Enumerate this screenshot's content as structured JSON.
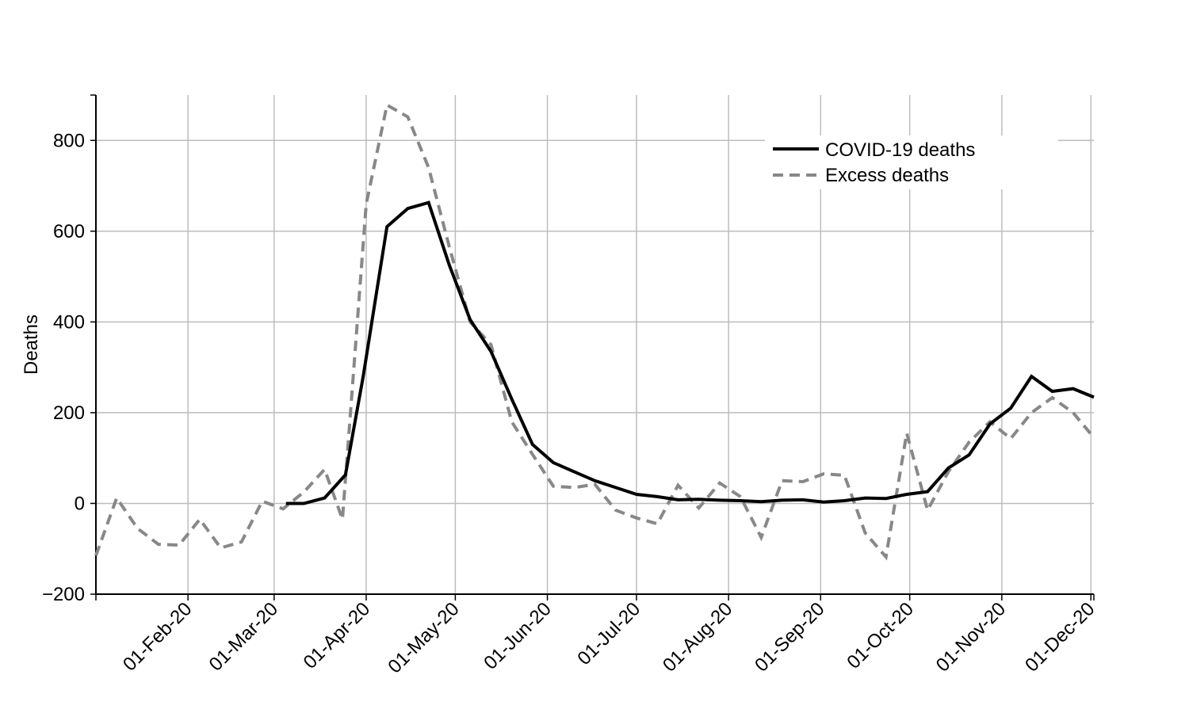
{
  "chart_data": {
    "type": "line",
    "title": "",
    "xlabel": "",
    "ylabel": "Deaths",
    "ylim": [
      -200,
      900
    ],
    "xlim": [
      "2020-01-01",
      "2020-12-02"
    ],
    "yticks": [
      -200,
      0,
      200,
      400,
      600,
      800
    ],
    "ytick_labels": [
      "−200",
      "0",
      "200",
      "400",
      "600",
      "800"
    ],
    "xticks": [
      "2020-02-01",
      "2020-03-01",
      "2020-04-01",
      "2020-05-01",
      "2020-06-01",
      "2020-07-01",
      "2020-08-01",
      "2020-09-01",
      "2020-10-01",
      "2020-11-01",
      "2020-12-01"
    ],
    "xtick_labels": [
      "01-Feb-20",
      "01-Mar-20",
      "01-Apr-20",
      "01-May-20",
      "01-Jun-20",
      "01-Jul-20",
      "01-Aug-20",
      "01-Sep-20",
      "01-Oct-20",
      "01-Nov-20",
      "01-Dec-20"
    ],
    "grid": true,
    "legend_position": "top-right",
    "series": [
      {
        "name": "COVID-19 deaths",
        "style": "solid",
        "color": "#000000",
        "points": [
          [
            "2020-03-05",
            0
          ],
          [
            "2020-03-11",
            0
          ],
          [
            "2020-03-18",
            12
          ],
          [
            "2020-03-25",
            63
          ],
          [
            "2020-03-31",
            280
          ],
          [
            "2020-04-08",
            610
          ],
          [
            "2020-04-15",
            650
          ],
          [
            "2020-04-22",
            663
          ],
          [
            "2020-04-29",
            525
          ],
          [
            "2020-05-06",
            405
          ],
          [
            "2020-05-13",
            335
          ],
          [
            "2020-05-20",
            230
          ],
          [
            "2020-05-27",
            130
          ],
          [
            "2020-06-03",
            90
          ],
          [
            "2020-06-10",
            70
          ],
          [
            "2020-06-17",
            50
          ],
          [
            "2020-06-24",
            35
          ],
          [
            "2020-07-01",
            20
          ],
          [
            "2020-07-08",
            15
          ],
          [
            "2020-07-15",
            8
          ],
          [
            "2020-07-22",
            9
          ],
          [
            "2020-07-29",
            7
          ],
          [
            "2020-08-05",
            6
          ],
          [
            "2020-08-12",
            4
          ],
          [
            "2020-08-19",
            7
          ],
          [
            "2020-08-26",
            8
          ],
          [
            "2020-09-02",
            3
          ],
          [
            "2020-09-09",
            6
          ],
          [
            "2020-09-16",
            12
          ],
          [
            "2020-09-23",
            11
          ],
          [
            "2020-09-30",
            20
          ],
          [
            "2020-10-07",
            26
          ],
          [
            "2020-10-14",
            78
          ],
          [
            "2020-10-21",
            107
          ],
          [
            "2020-10-28",
            175
          ],
          [
            "2020-11-04",
            210
          ],
          [
            "2020-11-11",
            280
          ],
          [
            "2020-11-18",
            247
          ],
          [
            "2020-11-25",
            253
          ],
          [
            "2020-12-02",
            234
          ]
        ]
      },
      {
        "name": "Excess deaths",
        "style": "dashed",
        "color": "#888888",
        "points": [
          [
            "2020-01-01",
            -115
          ],
          [
            "2020-01-08",
            12
          ],
          [
            "2020-01-15",
            -55
          ],
          [
            "2020-01-22",
            -90
          ],
          [
            "2020-01-29",
            -92
          ],
          [
            "2020-02-05",
            -35
          ],
          [
            "2020-02-12",
            -98
          ],
          [
            "2020-02-19",
            -85
          ],
          [
            "2020-02-26",
            5
          ],
          [
            "2020-03-04",
            -12
          ],
          [
            "2020-03-11",
            25
          ],
          [
            "2020-03-18",
            75
          ],
          [
            "2020-03-24",
            -35
          ],
          [
            "2020-04-01",
            660
          ],
          [
            "2020-04-08",
            878
          ],
          [
            "2020-04-15",
            852
          ],
          [
            "2020-04-22",
            740
          ],
          [
            "2020-04-29",
            565
          ],
          [
            "2020-05-06",
            400
          ],
          [
            "2020-05-13",
            350
          ],
          [
            "2020-05-20",
            180
          ],
          [
            "2020-05-27",
            108
          ],
          [
            "2020-06-03",
            38
          ],
          [
            "2020-06-10",
            35
          ],
          [
            "2020-06-17",
            42
          ],
          [
            "2020-06-24",
            -15
          ],
          [
            "2020-07-01",
            -32
          ],
          [
            "2020-07-08",
            -45
          ],
          [
            "2020-07-15",
            40
          ],
          [
            "2020-07-22",
            -10
          ],
          [
            "2020-07-29",
            45
          ],
          [
            "2020-08-05",
            15
          ],
          [
            "2020-08-12",
            -75
          ],
          [
            "2020-08-19",
            50
          ],
          [
            "2020-08-26",
            48
          ],
          [
            "2020-09-02",
            65
          ],
          [
            "2020-09-09",
            62
          ],
          [
            "2020-09-16",
            -65
          ],
          [
            "2020-09-23",
            -118
          ],
          [
            "2020-09-30",
            155
          ],
          [
            "2020-10-07",
            -15
          ],
          [
            "2020-10-14",
            70
          ],
          [
            "2020-10-21",
            135
          ],
          [
            "2020-10-28",
            180
          ],
          [
            "2020-11-04",
            143
          ],
          [
            "2020-11-11",
            200
          ],
          [
            "2020-11-18",
            233
          ],
          [
            "2020-11-25",
            200
          ],
          [
            "2020-12-02",
            145
          ]
        ]
      }
    ]
  }
}
